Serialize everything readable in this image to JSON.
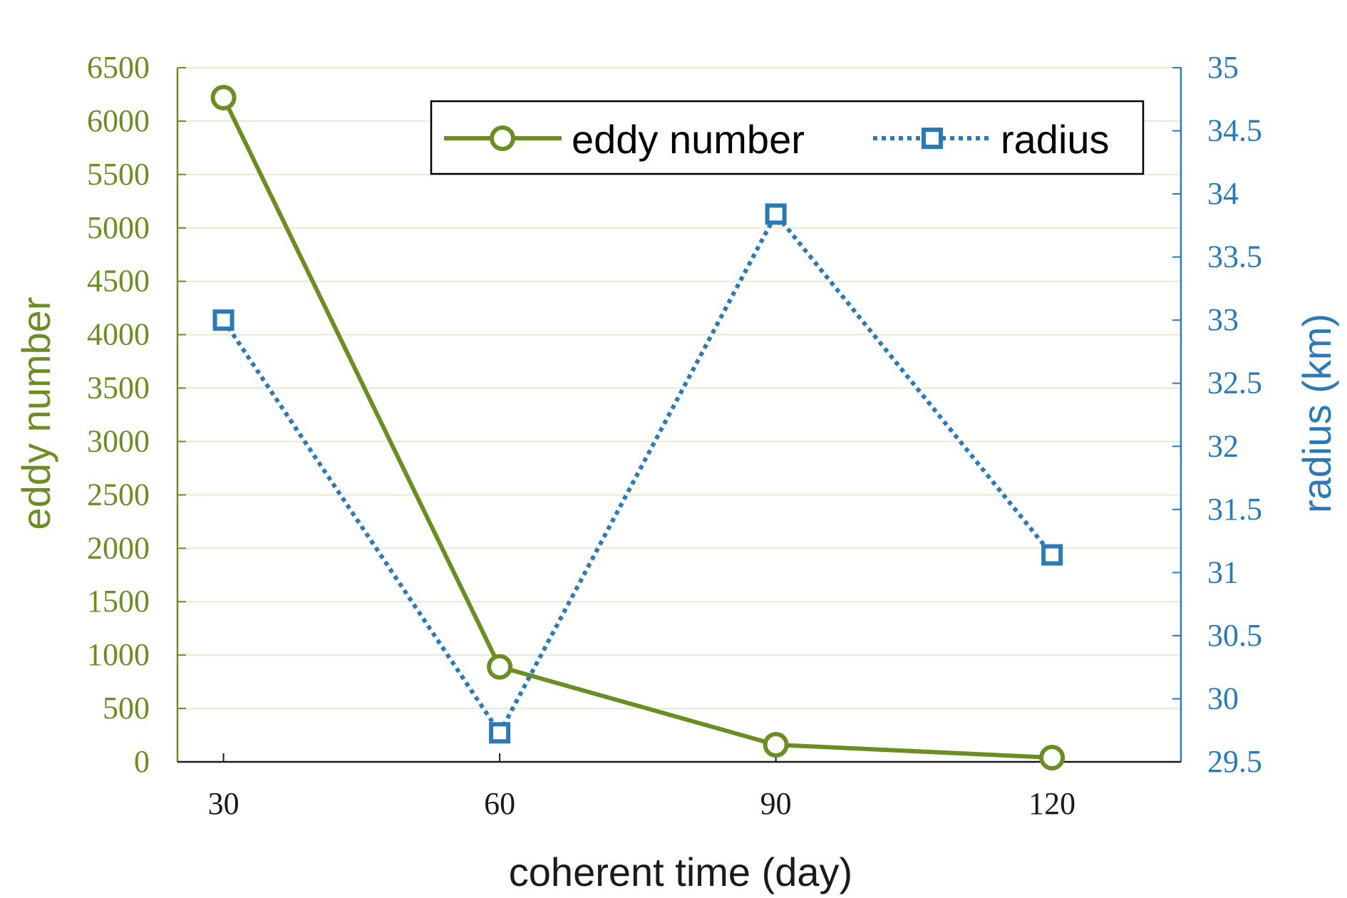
{
  "chart_data": {
    "type": "line",
    "x": [
      30,
      60,
      90,
      120
    ],
    "xlabel": "coherent time (day)",
    "xlim": [
      25,
      134
    ],
    "x_ticks": [
      "30",
      "60",
      "90",
      "120"
    ],
    "grid": "horizontal",
    "legend_position": "top-right",
    "left_axis": {
      "label": "eddy number",
      "ylim": [
        0,
        6500
      ],
      "ticks": [
        "0",
        "500",
        "1000",
        "1500",
        "2000",
        "2500",
        "3000",
        "3500",
        "4000",
        "4500",
        "5000",
        "5500",
        "6000",
        "6500"
      ],
      "color": "#6b8e23"
    },
    "right_axis": {
      "label": "radius (km)",
      "ylim": [
        29.5,
        35
      ],
      "ticks": [
        "29.5",
        "30",
        "30.5",
        "31",
        "31.5",
        "32",
        "32.5",
        "33",
        "33.5",
        "34",
        "34.5",
        "35"
      ],
      "color": "#2a7ab8"
    },
    "series": [
      {
        "name": "eddy number",
        "axis": "left",
        "values": [
          6220,
          890,
          160,
          40
        ],
        "color": "#6b8e23",
        "line": "solid",
        "marker": "circle"
      },
      {
        "name": "radius",
        "axis": "right",
        "values": [
          33.0,
          29.73,
          33.84,
          31.14
        ],
        "color": "#2a7ab8",
        "line": "dotted",
        "marker": "square"
      }
    ]
  }
}
